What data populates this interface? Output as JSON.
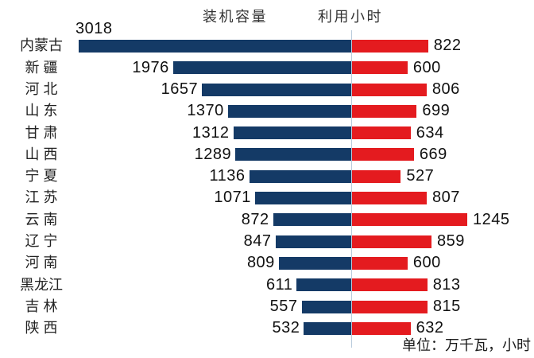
{
  "chart_data": {
    "type": "bar",
    "subtype": "bidirectional-tornado",
    "title": "",
    "categories": [
      "内蒙古",
      "新 疆",
      "河 北",
      "山 东",
      "甘 肃",
      "山 西",
      "宁 夏",
      "江 苏",
      "云 南",
      "辽 宁",
      "河 南",
      "黑龙江",
      "吉 林",
      "陕 西"
    ],
    "series": [
      {
        "name": "装机容量",
        "direction": "left",
        "color": "#143a66",
        "values": [
          3018,
          1976,
          1657,
          1370,
          1312,
          1289,
          1136,
          1071,
          872,
          847,
          809,
          611,
          557,
          532
        ]
      },
      {
        "name": "利用小时",
        "direction": "right",
        "color": "#e41b1f",
        "values": [
          822,
          600,
          806,
          699,
          634,
          669,
          527,
          807,
          1245,
          859,
          600,
          813,
          815,
          632
        ]
      }
    ],
    "unit_note": "单位：万千瓦，小时",
    "layout_hints": {
      "legend_position": "top",
      "grid": "off",
      "center_axis_line_color": "#b9cbdc",
      "value_labels": "outside-ends",
      "left_axis_max": 3018,
      "right_axis_max": 1245
    }
  }
}
